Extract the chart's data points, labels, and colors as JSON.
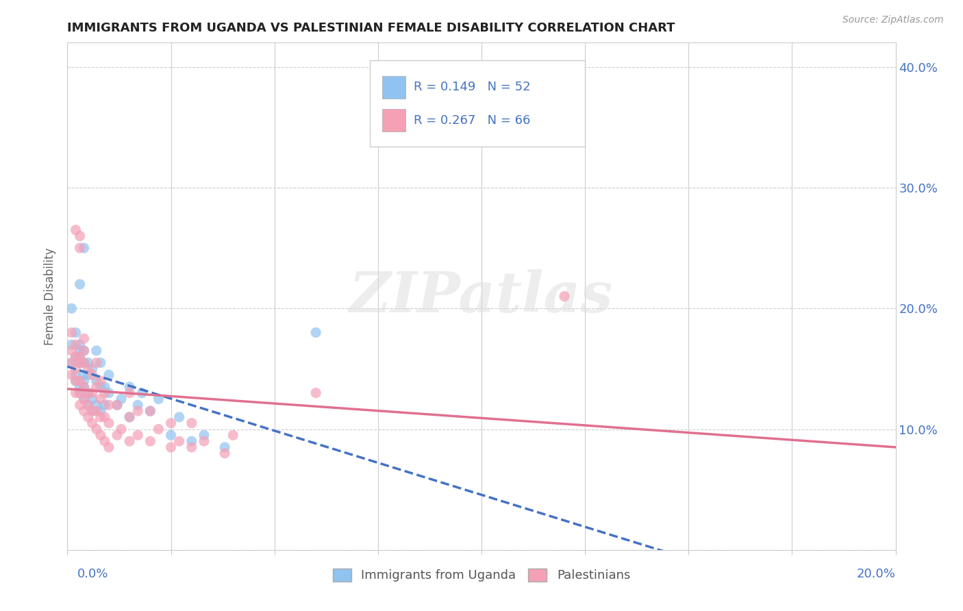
{
  "title": "IMMIGRANTS FROM UGANDA VS PALESTINIAN FEMALE DISABILITY CORRELATION CHART",
  "source": "Source: ZipAtlas.com",
  "ylabel": "Female Disability",
  "xlim": [
    0.0,
    0.2
  ],
  "ylim": [
    0.0,
    0.42
  ],
  "yticks": [
    0.0,
    0.1,
    0.2,
    0.3,
    0.4
  ],
  "xtick_count": 9,
  "color_uganda": "#91C3F0",
  "color_palestinians": "#F5A0B5",
  "color_line_uganda": "#4472C4",
  "color_line_palestinians": "#E07090",
  "text_color_blue": "#4472C4",
  "watermark": "ZIPatlas",
  "background_color": "#FFFFFF",
  "grid_color": "#CCCCCC",
  "uganda_points": [
    [
      0.001,
      0.155
    ],
    [
      0.001,
      0.17
    ],
    [
      0.001,
      0.2
    ],
    [
      0.002,
      0.14
    ],
    [
      0.002,
      0.145
    ],
    [
      0.002,
      0.16
    ],
    [
      0.002,
      0.18
    ],
    [
      0.003,
      0.13
    ],
    [
      0.003,
      0.135
    ],
    [
      0.003,
      0.155
    ],
    [
      0.003,
      0.16
    ],
    [
      0.003,
      0.165
    ],
    [
      0.003,
      0.17
    ],
    [
      0.003,
      0.22
    ],
    [
      0.004,
      0.125
    ],
    [
      0.004,
      0.135
    ],
    [
      0.004,
      0.14
    ],
    [
      0.004,
      0.145
    ],
    [
      0.004,
      0.155
    ],
    [
      0.004,
      0.165
    ],
    [
      0.004,
      0.25
    ],
    [
      0.005,
      0.12
    ],
    [
      0.005,
      0.13
    ],
    [
      0.005,
      0.145
    ],
    [
      0.005,
      0.155
    ],
    [
      0.006,
      0.115
    ],
    [
      0.006,
      0.125
    ],
    [
      0.006,
      0.15
    ],
    [
      0.007,
      0.12
    ],
    [
      0.007,
      0.14
    ],
    [
      0.007,
      0.165
    ],
    [
      0.008,
      0.115
    ],
    [
      0.008,
      0.135
    ],
    [
      0.008,
      0.155
    ],
    [
      0.009,
      0.12
    ],
    [
      0.009,
      0.135
    ],
    [
      0.01,
      0.13
    ],
    [
      0.01,
      0.145
    ],
    [
      0.012,
      0.12
    ],
    [
      0.013,
      0.125
    ],
    [
      0.015,
      0.11
    ],
    [
      0.015,
      0.135
    ],
    [
      0.017,
      0.12
    ],
    [
      0.018,
      0.13
    ],
    [
      0.02,
      0.115
    ],
    [
      0.022,
      0.125
    ],
    [
      0.025,
      0.095
    ],
    [
      0.027,
      0.11
    ],
    [
      0.03,
      0.09
    ],
    [
      0.033,
      0.095
    ],
    [
      0.038,
      0.085
    ],
    [
      0.06,
      0.18
    ]
  ],
  "palestinians_points": [
    [
      0.001,
      0.145
    ],
    [
      0.001,
      0.155
    ],
    [
      0.001,
      0.165
    ],
    [
      0.001,
      0.18
    ],
    [
      0.002,
      0.13
    ],
    [
      0.002,
      0.14
    ],
    [
      0.002,
      0.15
    ],
    [
      0.002,
      0.16
    ],
    [
      0.002,
      0.17
    ],
    [
      0.002,
      0.265
    ],
    [
      0.003,
      0.12
    ],
    [
      0.003,
      0.13
    ],
    [
      0.003,
      0.14
    ],
    [
      0.003,
      0.155
    ],
    [
      0.003,
      0.16
    ],
    [
      0.003,
      0.25
    ],
    [
      0.003,
      0.26
    ],
    [
      0.004,
      0.115
    ],
    [
      0.004,
      0.125
    ],
    [
      0.004,
      0.135
    ],
    [
      0.004,
      0.155
    ],
    [
      0.004,
      0.165
    ],
    [
      0.004,
      0.175
    ],
    [
      0.005,
      0.11
    ],
    [
      0.005,
      0.12
    ],
    [
      0.005,
      0.13
    ],
    [
      0.005,
      0.15
    ],
    [
      0.006,
      0.105
    ],
    [
      0.006,
      0.115
    ],
    [
      0.006,
      0.13
    ],
    [
      0.006,
      0.145
    ],
    [
      0.007,
      0.1
    ],
    [
      0.007,
      0.115
    ],
    [
      0.007,
      0.135
    ],
    [
      0.007,
      0.155
    ],
    [
      0.008,
      0.095
    ],
    [
      0.008,
      0.11
    ],
    [
      0.008,
      0.125
    ],
    [
      0.008,
      0.14
    ],
    [
      0.009,
      0.09
    ],
    [
      0.009,
      0.11
    ],
    [
      0.009,
      0.13
    ],
    [
      0.01,
      0.085
    ],
    [
      0.01,
      0.105
    ],
    [
      0.01,
      0.12
    ],
    [
      0.012,
      0.095
    ],
    [
      0.012,
      0.12
    ],
    [
      0.013,
      0.1
    ],
    [
      0.015,
      0.09
    ],
    [
      0.015,
      0.11
    ],
    [
      0.015,
      0.13
    ],
    [
      0.017,
      0.095
    ],
    [
      0.017,
      0.115
    ],
    [
      0.02,
      0.09
    ],
    [
      0.02,
      0.115
    ],
    [
      0.022,
      0.1
    ],
    [
      0.025,
      0.085
    ],
    [
      0.025,
      0.105
    ],
    [
      0.027,
      0.09
    ],
    [
      0.03,
      0.085
    ],
    [
      0.03,
      0.105
    ],
    [
      0.033,
      0.09
    ],
    [
      0.038,
      0.08
    ],
    [
      0.04,
      0.095
    ],
    [
      0.06,
      0.13
    ],
    [
      0.12,
      0.21
    ]
  ]
}
